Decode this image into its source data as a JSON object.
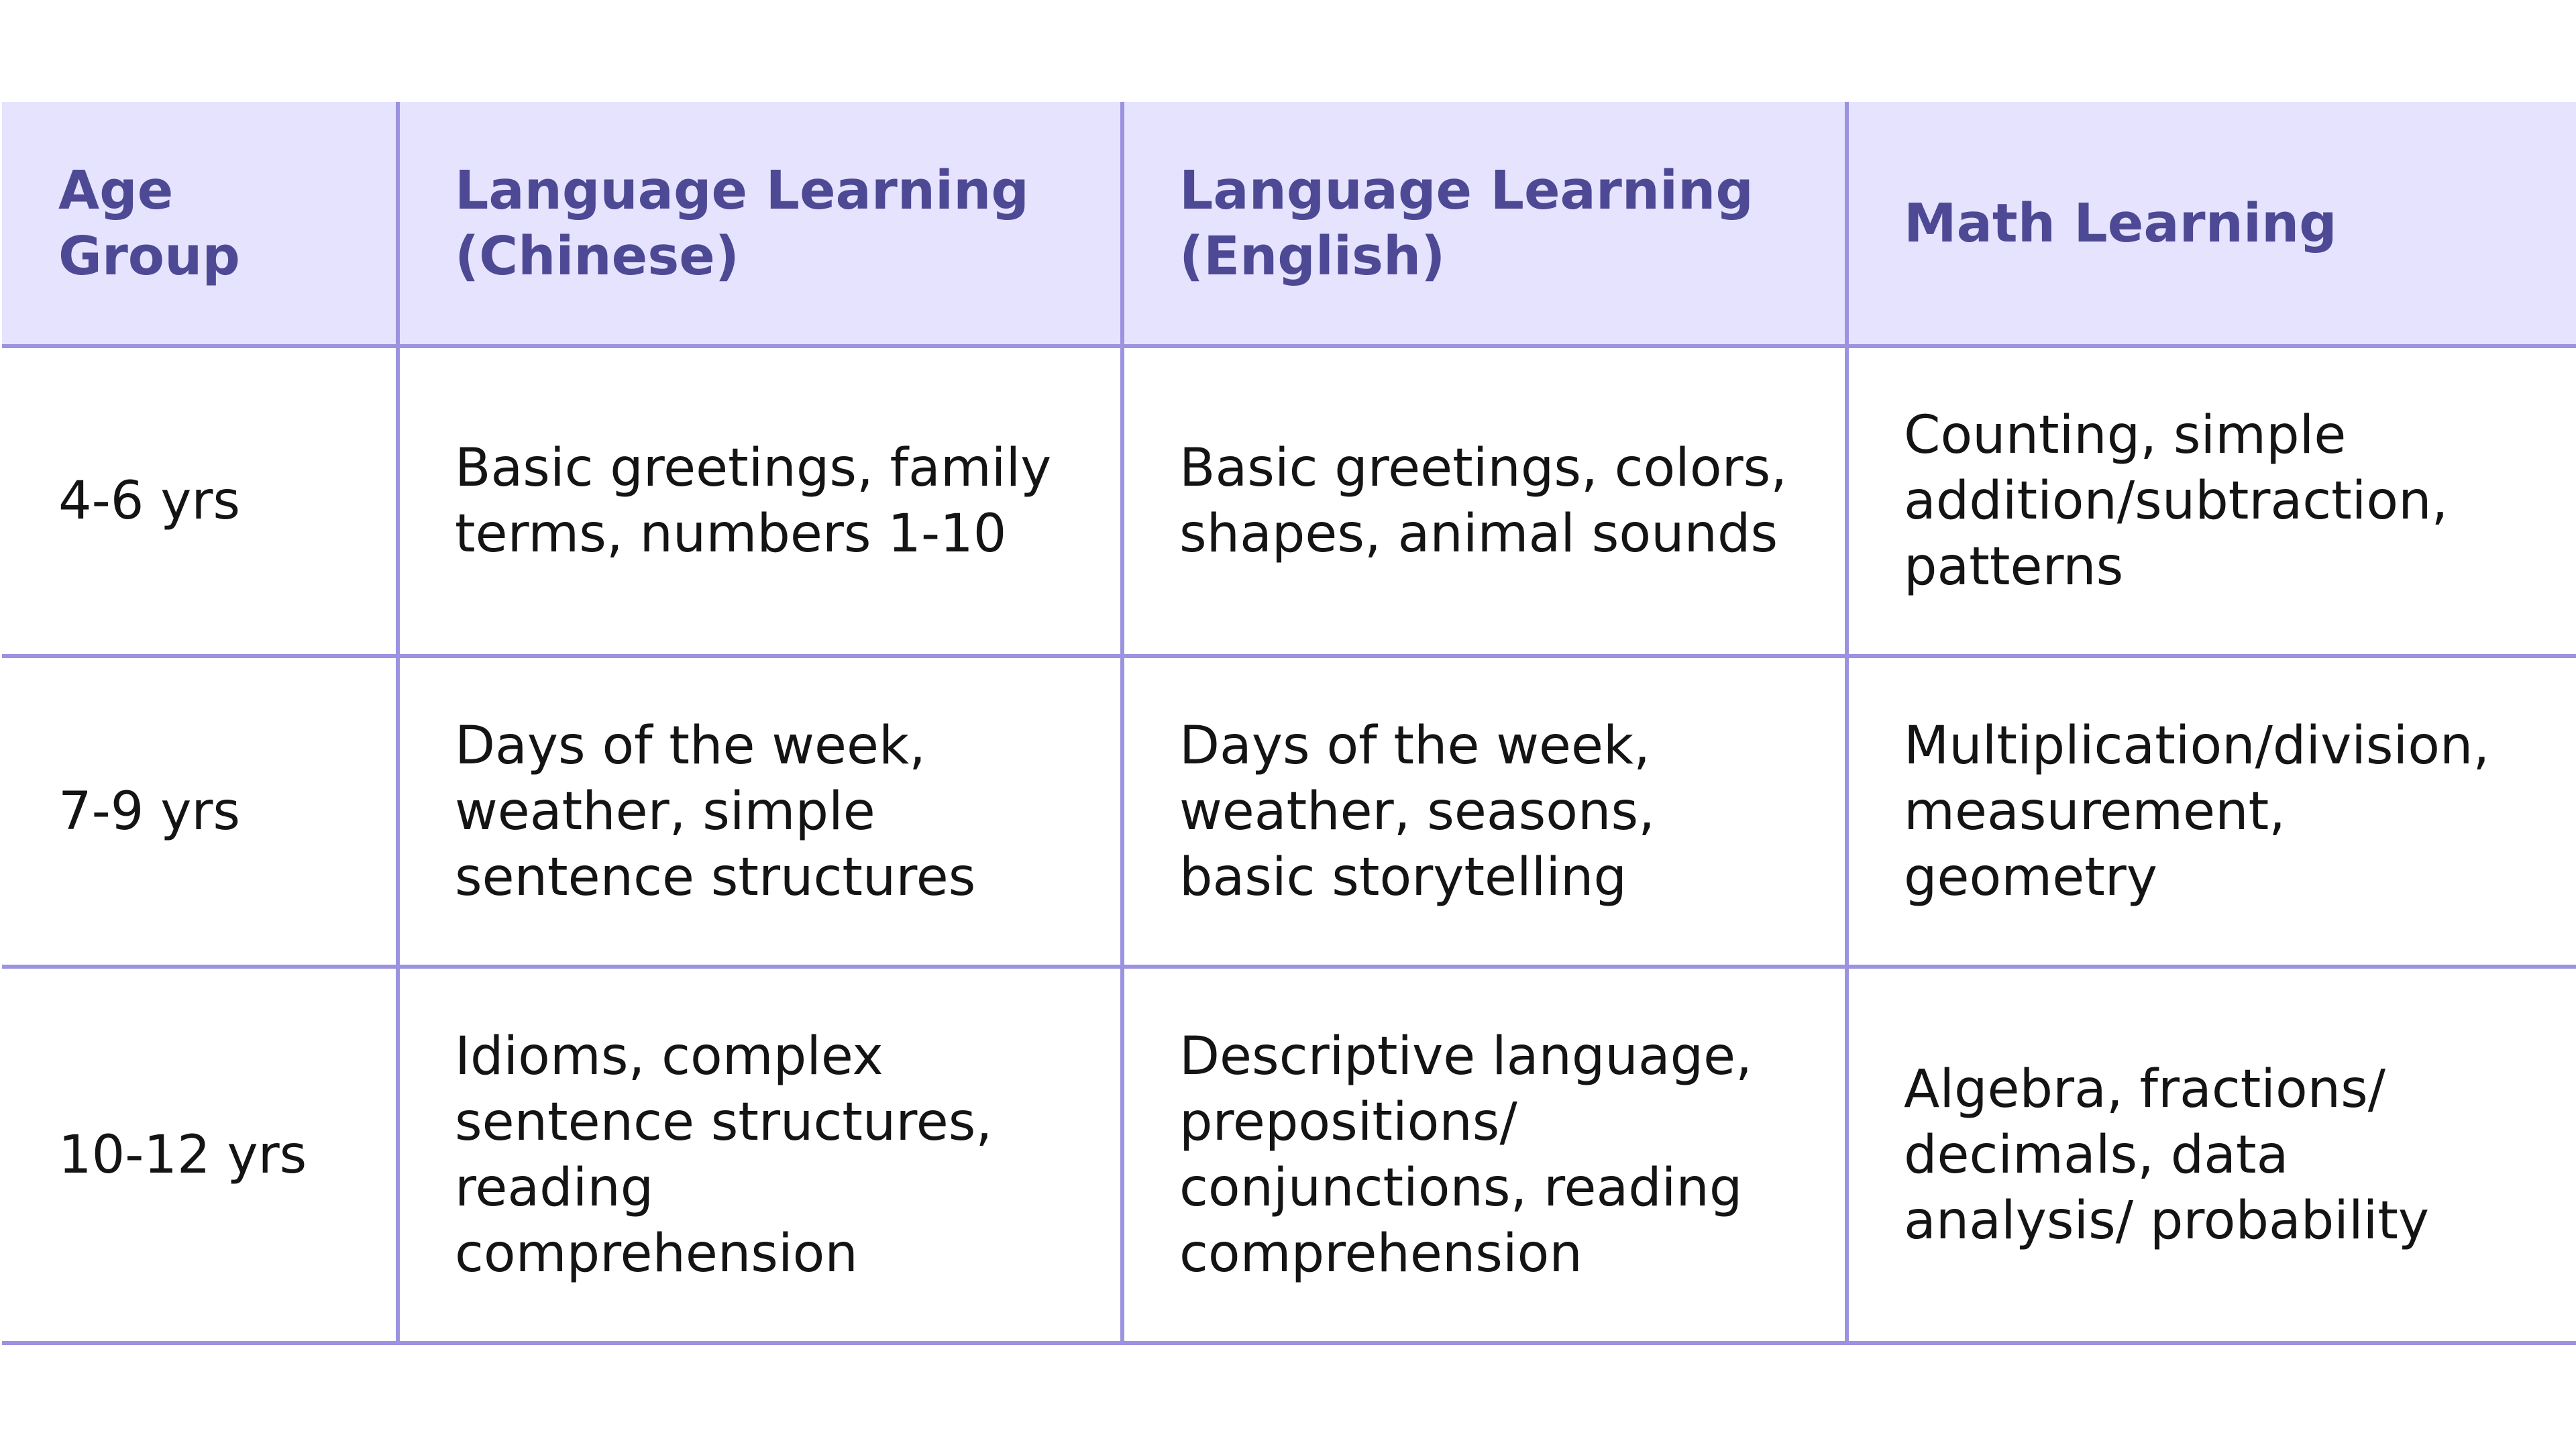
{
  "table": {
    "headers": [
      "Age Group",
      "Language Learning (Chinese)",
      "Language Learning (English)",
      "Math Learning"
    ],
    "rows": [
      [
        "4-6 yrs",
        "Basic greetings, family terms, numbers 1-10",
        "Basic greetings, colors, shapes, animal sounds",
        "Counting, simple addition/subtraction, patterns"
      ],
      [
        "7-9 yrs",
        "Days of the week, weather, simple sentence structures",
        "Days of the week, weather, seasons, basic storytelling",
        "Multiplication/division, measurement, geometry"
      ],
      [
        "10-12 yrs",
        "Idioms, complex sentence structures, reading comprehension",
        "Descriptive language, prepositions/ conjunctions, reading comprehension",
        "Algebra, fractions/ decimals, data analysis/ probability"
      ]
    ]
  },
  "colors": {
    "header_bg": "#e6e3fe",
    "header_text": "#4e4994",
    "grid_line": "#9b93e0",
    "body_text": "#141414"
  }
}
